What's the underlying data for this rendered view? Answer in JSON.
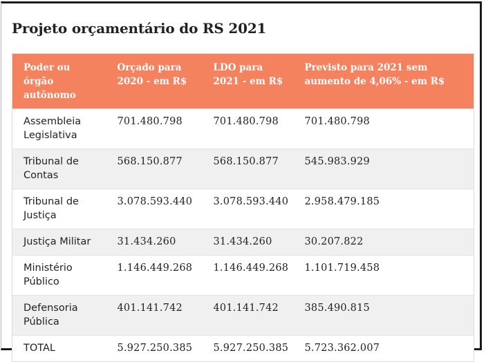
{
  "title": "Projeto orçamentário do RS 2021",
  "table": {
    "headers": [
      "Poder ou órgão autônomo",
      "Orçado para 2020 - em R$",
      "LDO para 2021 - em R$",
      "Previsto para 2021 sem aumento de 4,06% - em R$"
    ],
    "rows": [
      [
        "Assembleia Legislativa",
        "701.480.798",
        "701.480.798",
        "701.480.798"
      ],
      [
        "Tribunal de Contas",
        "568.150.877",
        "568.150.877",
        "545.983.929"
      ],
      [
        "Tribunal de Justiça",
        "3.078.593.440",
        "3.078.593.440",
        "2.958.479.185"
      ],
      [
        "Justiça Militar",
        "31.434.260",
        "31.434.260",
        "30.207.822"
      ],
      [
        "Ministério Público",
        "1.146.449.268",
        "1.146.449.268",
        "1.101.719.458"
      ],
      [
        "Defensoria Pública",
        "401.141.742",
        "401.141.742",
        "385.490.815"
      ],
      [
        "TOTAL",
        "5.927.250.385",
        "5.927.250.385",
        "5.723.362.007"
      ]
    ]
  },
  "colors": {
    "header_bg": "#f4825f",
    "header_text": "#ffffff",
    "row_alt_bg": "#f0f0f0"
  }
}
